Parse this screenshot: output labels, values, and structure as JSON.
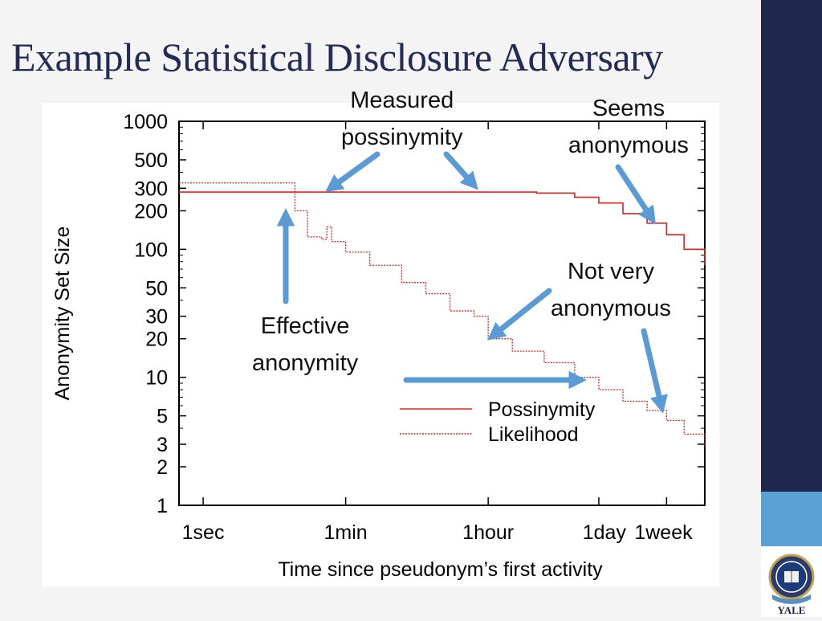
{
  "slide": {
    "title": "Example Statistical Disclosure Adversary"
  },
  "annotations": {
    "measured": [
      "Measured",
      "possinymity"
    ],
    "seems": [
      "Seems",
      "anonymous"
    ],
    "not_very": [
      "Not very",
      "anonymous"
    ],
    "effective": [
      "Effective",
      "anonymity"
    ]
  },
  "logo": {
    "name": "yale-shield-logo",
    "text": "YALE"
  },
  "colors": {
    "navy": "#20274f",
    "light_blue": "#5aa1d6",
    "arrow": "#5b9bd5",
    "series": "#e8201e",
    "title": "#232b57"
  },
  "chart_data": {
    "type": "line",
    "xlabel": "Time since pseudonym’s first activity",
    "ylabel": "Anonymity Set Size",
    "x_scale": "log",
    "y_scale": "log",
    "xlim_seconds": [
      0.5,
      1814400
    ],
    "ylim": [
      1,
      1000
    ],
    "x_ticks": [
      {
        "label": "1sec",
        "seconds": 1
      },
      {
        "label": "1min",
        "seconds": 60
      },
      {
        "label": "1hour",
        "seconds": 3600
      },
      {
        "label": "1day",
        "seconds": 86400
      },
      {
        "label": "1week",
        "seconds": 604800
      }
    ],
    "y_ticks": [
      1,
      2,
      3,
      5,
      10,
      20,
      30,
      50,
      100,
      200,
      300,
      500,
      1000
    ],
    "y_tick_labels": [
      "1",
      "2",
      "3",
      "5",
      "10",
      "20",
      "30",
      "50",
      "100",
      "200",
      "300",
      "500",
      "1000"
    ],
    "legend": {
      "position": "bottom-right"
    },
    "series": [
      {
        "name": "Possinymity",
        "style": "solid",
        "x_seconds": [
          0.5,
          1,
          10,
          60,
          600,
          3600,
          14400,
          43200,
          86400,
          172800,
          345600,
          604800,
          1000000,
          1814400
        ],
        "y": [
          280,
          280,
          280,
          280,
          280,
          280,
          275,
          255,
          230,
          190,
          160,
          130,
          100,
          75
        ]
      },
      {
        "name": "Likelihood",
        "style": "dotted",
        "x_seconds": [
          0.5,
          5,
          12,
          14,
          20,
          30,
          35,
          40,
          60,
          120,
          300,
          600,
          1200,
          2400,
          3600,
          7200,
          18000,
          43200,
          86400,
          172800,
          345600,
          604800,
          1000000,
          1814400
        ],
        "y": [
          330,
          330,
          330,
          200,
          125,
          120,
          150,
          115,
          95,
          75,
          55,
          45,
          33,
          30,
          20,
          16,
          13,
          10,
          8,
          6.5,
          5.5,
          4.6,
          3.6,
          2.8
        ]
      }
    ]
  }
}
